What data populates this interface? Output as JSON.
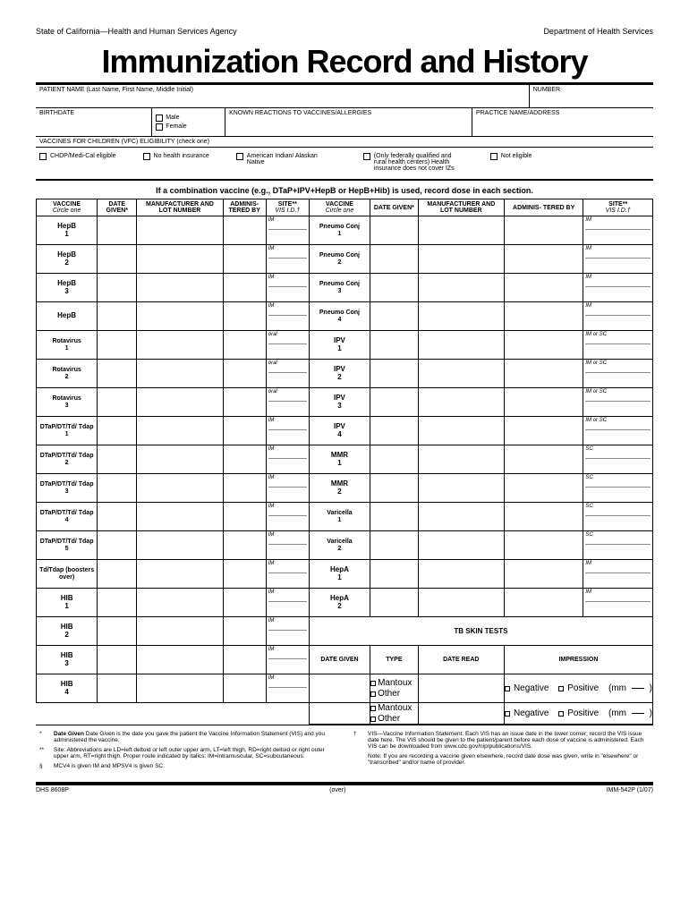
{
  "header": {
    "agency": "State of California—Health and Human Services Agency",
    "dept": "Department of Health Services"
  },
  "title": "Immunization Record and History",
  "patient": {
    "name_label": "PATIENT NAME (Last Name, First Name, Middle Initial)",
    "number_label": "NUMBER",
    "birthdate_label": "BIRTHDATE",
    "male": "Male",
    "female": "Female",
    "reactions_label": "KNOWN REACTIONS TO VACCINES/ALLERGIES",
    "practice_label": "PRACTICE NAME/ADDRESS",
    "vfc_label": "VACCINES FOR CHILDREN (VFC) ELIGIBILITY (check one)",
    "vfc_opts": [
      "CHDP/Medi-Cal eligible",
      "No health insurance",
      "American Indian/ Alaskan Native",
      "(Only federally qualified and rural health centers) Health insurance does not cover IZs",
      "Not eligible"
    ]
  },
  "instruction": "If a combination vaccine (e.g., DTaP+IPV+HepB or HepB+Hib) is used, record dose in each section.",
  "headers": {
    "vaccine": "VACCINE",
    "circle_one": "Circle one",
    "date_given": "DATE GIVEN*",
    "mfr": "MANUFACTURER AND LOT NUMBER",
    "admin": "ADMINIS- TERED BY",
    "site": "SITE**",
    "vis": "VIS I.D.†"
  },
  "left_vaccines": [
    {
      "name": "HepB 1",
      "site": "IM"
    },
    {
      "name": "HepB 2",
      "site": "IM"
    },
    {
      "name": "HepB 3",
      "site": "IM"
    },
    {
      "name": "HepB",
      "site": "IM"
    },
    {
      "name": "Rotavirus 1",
      "site": "oral"
    },
    {
      "name": "Rotavirus 2",
      "site": "oral"
    },
    {
      "name": "Rotavirus 3",
      "site": "oral"
    },
    {
      "name": "DTaP/DT/Td/ Tdap 1",
      "site": "IM"
    },
    {
      "name": "DTaP/DT/Td/ Tdap 2",
      "site": "IM"
    },
    {
      "name": "DTaP/DT/Td/ Tdap 3",
      "site": "IM"
    },
    {
      "name": "DTaP/DT/Td/ Tdap 4",
      "site": "IM"
    },
    {
      "name": "DTaP/DT/Td/ Tdap 5",
      "site": "IM"
    },
    {
      "name": "Td/Tdap (boosters over)",
      "site": "IM"
    },
    {
      "name": "HIB 1",
      "site": "IM"
    },
    {
      "name": "HIB 2",
      "site": "IM"
    },
    {
      "name": "HIB 3",
      "site": "IM"
    },
    {
      "name": "HIB 4",
      "site": "IM"
    }
  ],
  "right_vaccines": [
    {
      "name": "Pneumo Conj 1",
      "site": "IM"
    },
    {
      "name": "Pneumo Conj 2",
      "site": "IM"
    },
    {
      "name": "Pneumo Conj 3",
      "site": "IM"
    },
    {
      "name": "Pneumo Conj 4",
      "site": "IM"
    },
    {
      "name": "IPV 1",
      "site": "IM or SC"
    },
    {
      "name": "IPV 2",
      "site": "IM or SC"
    },
    {
      "name": "IPV 3",
      "site": "IM or SC"
    },
    {
      "name": "IPV 4",
      "site": "IM or SC"
    },
    {
      "name": "MMR 1",
      "site": "SC"
    },
    {
      "name": "MMR 2",
      "site": "SC"
    },
    {
      "name": "Varicella 1",
      "site": "SC"
    },
    {
      "name": "Varicella 2",
      "site": "SC"
    },
    {
      "name": "HepA 1",
      "site": "IM"
    },
    {
      "name": "HepA 2",
      "site": "IM"
    }
  ],
  "tb": {
    "title": "TB SKIN TESTS",
    "date_given": "DATE GIVEN",
    "type": "TYPE",
    "date_read": "DATE READ",
    "impression": "IMPRESSION",
    "mantoux": "Mantoux",
    "other": "Other",
    "negative": "Negative",
    "positive": "Positive",
    "mm": "(mm",
    "paren": ")"
  },
  "footnotes": {
    "date_given": "Date Given is the date you gave the patient the Vaccine Information Statement (VIS) and you administered the vaccine.",
    "site": "Site: Abbreviations are LD=left deltoid or left outer upper arm, LT=left thigh, RD=right deltoid or right outer upper arm, RT=right thigh. Proper route indicated by italics: IM=intramuscular, SC=subcutaneous.",
    "mcv": "MCV4 is given IM and MPSV4 is given SC.",
    "vis": "VIS—Vaccine Information Statement. Each VIS has an issue date in the lower corner; record the VIS issue date here. The VIS should be given to the patient/parent before each dose of vaccine is administered. Each VIS can be downloaded from www.cdc.gov/nip/publications/VIS.",
    "note": "Note: If you are recording a vaccine given elsewhere, record date dose was given, write in \"elsewhere\" or \"transcribed\" and/or name of provider."
  },
  "bottom": {
    "left": "DHS 8608P",
    "center": "(over)",
    "right": "IMM-542P (1/07)"
  }
}
